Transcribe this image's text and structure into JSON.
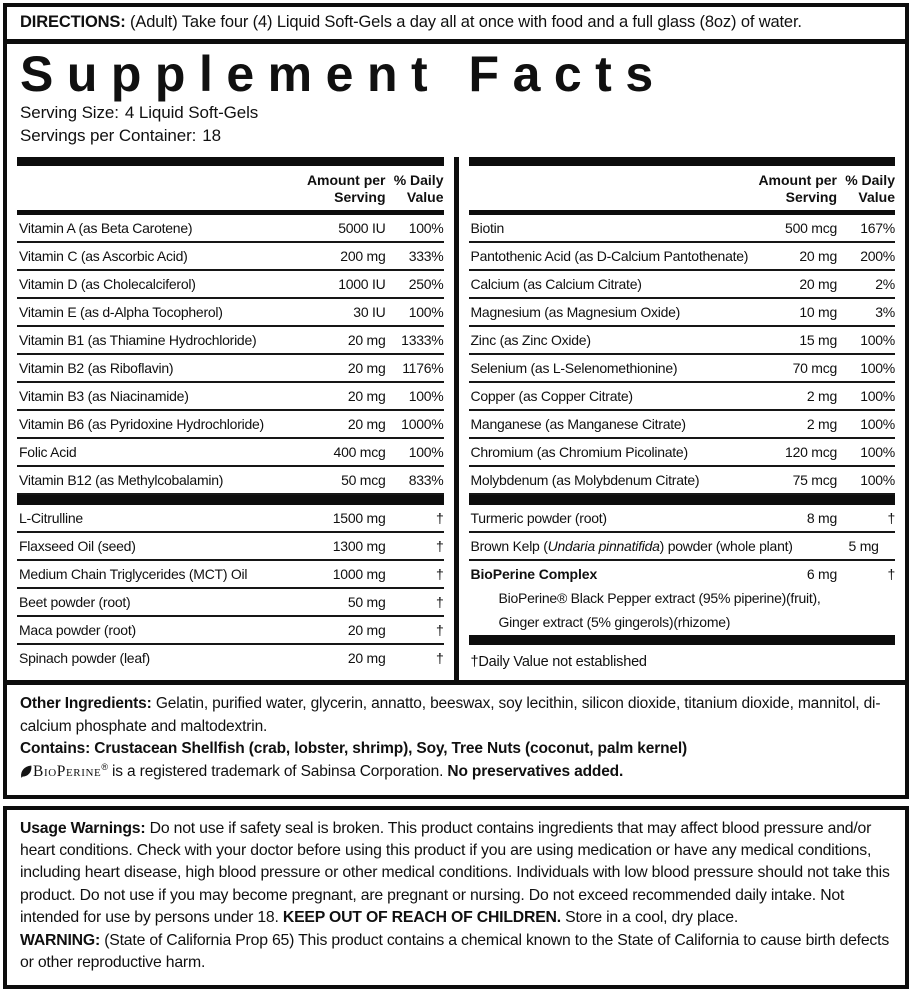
{
  "directions": {
    "label": "DIRECTIONS:",
    "text": " (Adult) Take four (4) Liquid Soft-Gels a day all at once with food and a full glass (8oz) of water."
  },
  "header": {
    "title": "Supplement Facts",
    "serving_size_label": "Serving Size:",
    "serving_size_value": "4 Liquid Soft-Gels",
    "servings_label": "Servings per Container:",
    "servings_value": "18"
  },
  "table_headers": {
    "amount": "Amount per\nServing",
    "dv": "% Daily\nValue"
  },
  "left_table": {
    "group1": [
      [
        "Vitamin A (as Beta Carotene)",
        "5000 IU",
        "100%"
      ],
      [
        "Vitamin C (as Ascorbic Acid)",
        "200 mg",
        "333%"
      ],
      [
        "Vitamin D (as Cholecalciferol)",
        "1000 IU",
        "250%"
      ],
      [
        "Vitamin E (as d-Alpha Tocopherol)",
        "30 IU",
        "100%"
      ],
      [
        "Vitamin B1 (as Thiamine Hydrochloride)",
        "20 mg",
        "1333%"
      ],
      [
        "Vitamin B2 (as Riboflavin)",
        "20 mg",
        "1176%"
      ],
      [
        "Vitamin B3 (as Niacinamide)",
        "20 mg",
        "100%"
      ],
      [
        "Vitamin B6 (as Pyridoxine Hydrochloride)",
        "20 mg",
        "1000%"
      ],
      [
        "Folic Acid",
        "400 mcg",
        "100%"
      ],
      [
        "Vitamin B12 (as Methylcobalamin)",
        "50 mcg",
        "833%"
      ]
    ],
    "group2": [
      [
        "L-Citrulline",
        "1500 mg",
        "†"
      ],
      [
        "Flaxseed Oil (seed)",
        "1300 mg",
        "†"
      ],
      [
        "Medium Chain Triglycerides (MCT) Oil",
        "1000 mg",
        "†"
      ],
      [
        "Beet powder (root)",
        "50 mg",
        "†"
      ],
      [
        "Maca powder (root)",
        "20 mg",
        "†"
      ],
      [
        "Spinach powder (leaf)",
        "20 mg",
        "†"
      ]
    ]
  },
  "right_table": {
    "group1": [
      [
        "Biotin",
        "500 mcg",
        "167%"
      ],
      [
        "Pantothenic Acid (as D-Calcium Pantothenate)",
        "20 mg",
        "200%"
      ],
      [
        "Calcium (as Calcium Citrate)",
        "20 mg",
        "2%"
      ],
      [
        "Magnesium (as Magnesium Oxide)",
        "10 mg",
        "3%"
      ],
      [
        "Zinc (as Zinc Oxide)",
        "15 mg",
        "100%"
      ],
      [
        "Selenium (as L-Selenomethionine)",
        "70 mcg",
        "100%"
      ],
      [
        "Copper (as Copper Citrate)",
        "2 mg",
        "100%"
      ],
      [
        "Manganese (as Manganese Citrate)",
        "2 mg",
        "100%"
      ],
      [
        "Chromium (as Chromium Picolinate)",
        "120 mcg",
        "100%"
      ],
      [
        "Molybdenum (as Molybdenum Citrate)",
        "75 mcg",
        "100%"
      ]
    ],
    "group2": [
      {
        "name": "Turmeric powder (root)",
        "amount": "8 mg",
        "dv": "†"
      },
      {
        "name_parts": [
          "Brown Kelp (",
          "Undaria pinnatifida",
          ") powder (whole plant)"
        ],
        "amount": "5 mg",
        "dv": "†"
      },
      {
        "name": "BioPerine Complex",
        "bold": true,
        "no_border": true,
        "amount": "6 mg",
        "dv": "†"
      }
    ],
    "sub_ingredients": [
      "BioPerine® Black Pepper extract (95% piperine)(fruit),",
      "Ginger extract (5% gingerols)(rhizome)"
    ],
    "footnote": "†Daily Value not established"
  },
  "other_ingredients": {
    "label": "Other Ingredients:",
    "text": "  Gelatin, purified water, glycerin, annatto, beeswax, soy lecithin, silicon dioxide, titanium dioxide, mannitol, di-calcium phosphate and maltodextrin.",
    "contains": "Contains: Crustacean Shellfish (crab, lobster, shrimp), Soy, Tree Nuts (coconut, palm kernel)",
    "trademark_brand": "BioPerine",
    "trademark_reg": "®",
    "trademark_text": " is a registered trademark of Sabinsa Corporation. ",
    "trademark_bold": "No preservatives added."
  },
  "warnings": {
    "label": "Usage Warnings:",
    "text_a": " Do not use if safety seal is broken. This product contains ingredients that may affect blood pressure and/or heart conditions. Check with your doctor before using this product if you are using medication or have any medical conditions, including heart disease, high blood pressure or other medical conditions. Individuals with low blood pressure should not take this product. Do not use if you may become pregnant, are pregnant or nursing. Do not exceed recommended daily intake. Not intended for use by persons under 18. ",
    "keep_out": "KEEP OUT OF REACH OF CHILDREN.",
    "text_b": " Store in a cool, dry place.",
    "warning_label": "WARNING:",
    "warning_text": " (State of California Prop 65) This product contains a chemical known to the State of California to cause birth defects or other reproductive harm."
  },
  "colors": {
    "ink": "#101010",
    "border": "#0d0d0d",
    "background": "#ffffff"
  }
}
